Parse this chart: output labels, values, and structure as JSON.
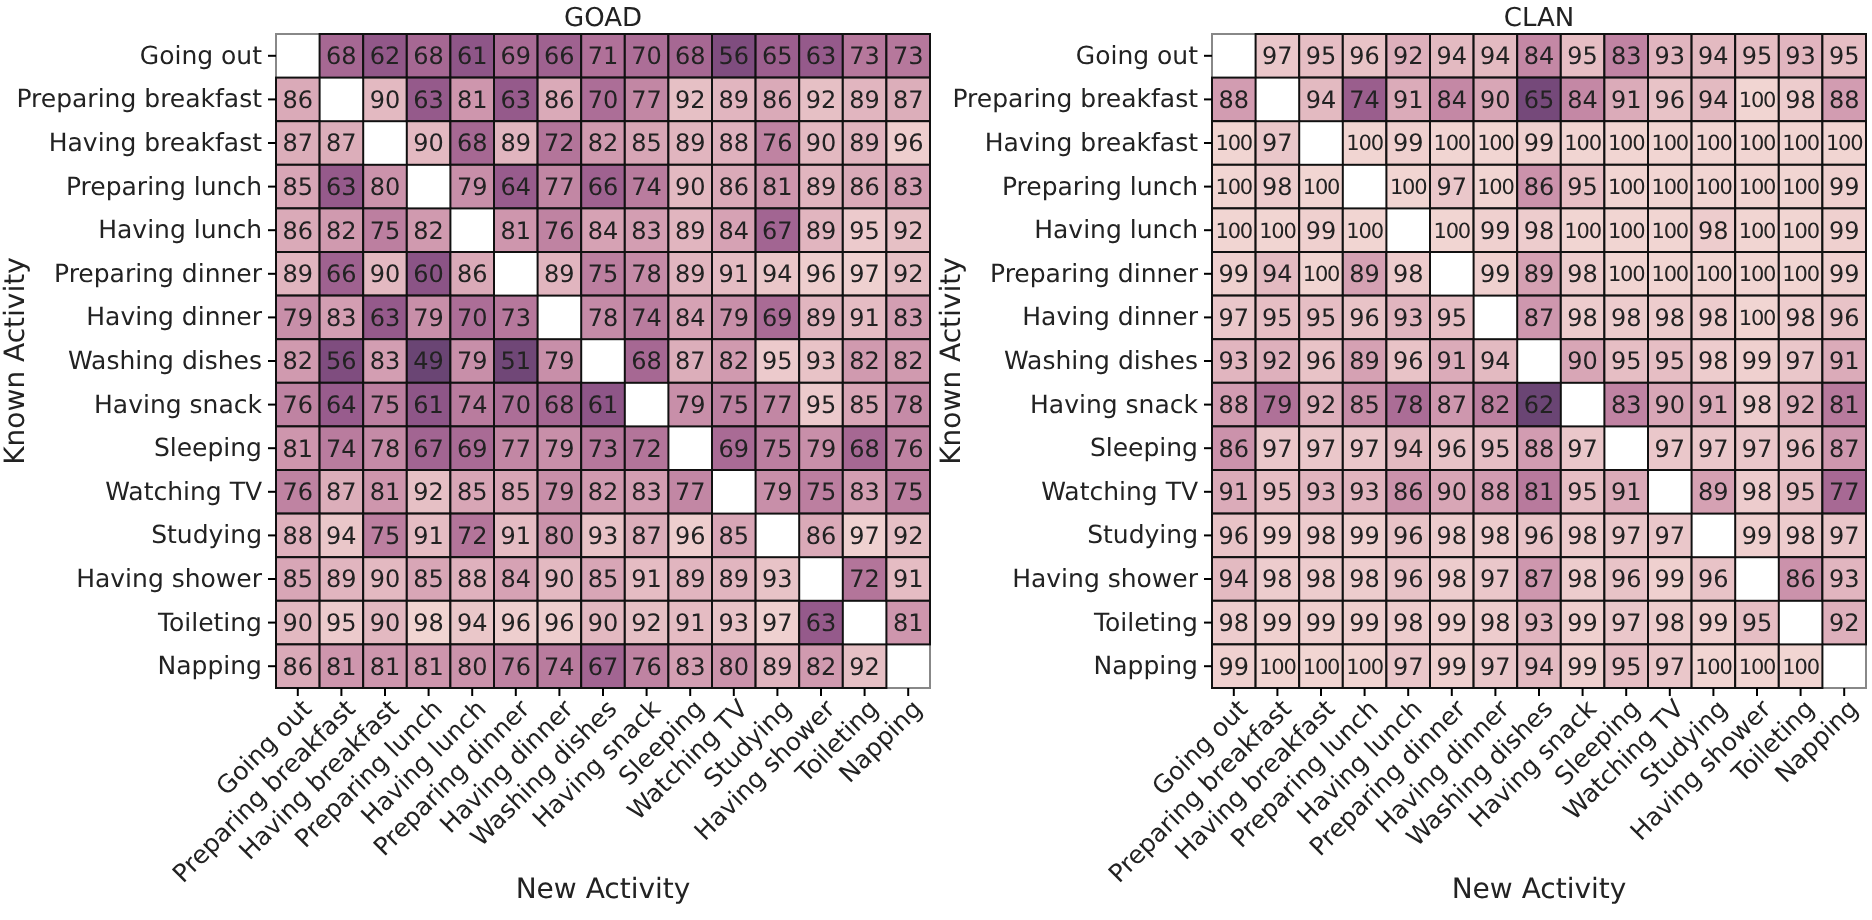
{
  "chart_data": [
    {
      "type": "heatmap",
      "title": "GOAD",
      "xlabel": "New Activity",
      "ylabel": "Known Activity",
      "categories": [
        "Going out",
        "Preparing breakfast",
        "Having breakfast",
        "Preparing lunch",
        "Having lunch",
        "Preparing dinner",
        "Having dinner",
        "Washing dishes",
        "Having snack",
        "Sleeping",
        "Watching TV",
        "Studying",
        "Having shower",
        "Toileting",
        "Napping"
      ],
      "y_categories": [
        "Going out",
        "Preparing breakfast",
        "Having breakfast",
        "Preparing lunch",
        "Having lunch",
        "Preparing dinner",
        "Having dinner",
        "Washing dishes",
        "Having snack",
        "Sleeping",
        "Watching TV",
        "Studying",
        "Having shower",
        "Toileting",
        "Napping"
      ],
      "data_labels": true,
      "cells": [
        [
          null,
          68,
          62,
          68,
          61,
          69,
          66,
          71,
          70,
          68,
          56,
          65,
          63,
          73,
          73
        ],
        [
          86,
          null,
          90,
          63,
          81,
          63,
          86,
          70,
          77,
          92,
          89,
          86,
          92,
          89,
          87
        ],
        [
          87,
          87,
          null,
          90,
          68,
          89,
          72,
          82,
          85,
          89,
          88,
          76,
          90,
          89,
          96
        ],
        [
          85,
          63,
          80,
          null,
          79,
          64,
          77,
          66,
          74,
          90,
          86,
          81,
          89,
          86,
          83
        ],
        [
          86,
          82,
          75,
          82,
          null,
          81,
          76,
          84,
          83,
          89,
          84,
          67,
          89,
          95,
          92
        ],
        [
          89,
          66,
          90,
          60,
          86,
          null,
          89,
          75,
          78,
          89,
          91,
          94,
          96,
          97,
          92
        ],
        [
          79,
          83,
          63,
          79,
          70,
          73,
          null,
          78,
          74,
          84,
          79,
          69,
          89,
          91,
          83
        ],
        [
          82,
          56,
          83,
          49,
          79,
          51,
          79,
          null,
          68,
          87,
          82,
          95,
          93,
          82,
          82
        ],
        [
          76,
          64,
          75,
          61,
          74,
          70,
          68,
          61,
          null,
          79,
          75,
          77,
          95,
          85,
          78
        ],
        [
          81,
          74,
          78,
          67,
          69,
          77,
          79,
          73,
          72,
          null,
          69,
          75,
          79,
          68,
          76
        ],
        [
          76,
          87,
          81,
          92,
          85,
          85,
          79,
          82,
          83,
          77,
          null,
          79,
          75,
          83,
          75
        ],
        [
          88,
          94,
          75,
          91,
          72,
          91,
          80,
          93,
          87,
          96,
          85,
          null,
          86,
          97,
          92
        ],
        [
          85,
          89,
          90,
          85,
          88,
          84,
          90,
          85,
          91,
          89,
          89,
          93,
          null,
          72,
          91
        ],
        [
          90,
          95,
          90,
          98,
          94,
          96,
          96,
          90,
          92,
          91,
          93,
          97,
          63,
          null,
          81
        ],
        [
          86,
          81,
          81,
          81,
          80,
          76,
          74,
          67,
          76,
          83,
          80,
          89,
          82,
          92,
          null
        ]
      ]
    },
    {
      "type": "heatmap",
      "title": "CLAN",
      "xlabel": "New Activity",
      "ylabel": "Known Activity",
      "categories": [
        "Going out",
        "Preparing breakfast",
        "Having breakfast",
        "Preparing lunch",
        "Having lunch",
        "Preparing dinner",
        "Having dinner",
        "Washing dishes",
        "Having snack",
        "Sleeping",
        "Watching TV",
        "Studying",
        "Having shower",
        "Toileting",
        "Napping"
      ],
      "y_categories": [
        "Going out",
        "Preparing breakfast",
        "Having breakfast",
        "Preparing lunch",
        "Having lunch",
        "Preparing dinner",
        "Having dinner",
        "Washing dishes",
        "Having snack",
        "Sleeping",
        "Watching TV",
        "Studying",
        "Having shower",
        "Toileting",
        "Napping"
      ],
      "data_labels": true,
      "cells": [
        [
          null,
          97,
          95,
          96,
          92,
          94,
          94,
          84,
          95,
          83,
          93,
          94,
          95,
          93,
          95
        ],
        [
          88,
          null,
          94,
          74,
          91,
          84,
          90,
          65,
          84,
          91,
          96,
          94,
          100,
          98,
          88
        ],
        [
          100,
          97,
          null,
          100,
          99,
          100,
          100,
          99,
          100,
          100,
          100,
          100,
          100,
          100,
          100
        ],
        [
          100,
          98,
          100,
          null,
          100,
          97,
          100,
          86,
          95,
          100,
          100,
          100,
          100,
          100,
          99
        ],
        [
          100,
          100,
          99,
          100,
          null,
          100,
          99,
          98,
          100,
          100,
          100,
          98,
          100,
          100,
          99
        ],
        [
          99,
          94,
          100,
          89,
          98,
          null,
          99,
          89,
          98,
          100,
          100,
          100,
          100,
          100,
          99
        ],
        [
          97,
          95,
          95,
          96,
          93,
          95,
          null,
          87,
          98,
          98,
          98,
          98,
          100,
          98,
          96
        ],
        [
          93,
          92,
          96,
          89,
          96,
          91,
          94,
          null,
          90,
          95,
          95,
          98,
          99,
          97,
          91
        ],
        [
          88,
          79,
          92,
          85,
          78,
          87,
          82,
          62,
          null,
          83,
          90,
          91,
          98,
          92,
          81
        ],
        [
          86,
          97,
          97,
          97,
          94,
          96,
          95,
          88,
          97,
          null,
          97,
          97,
          97,
          96,
          87
        ],
        [
          91,
          95,
          93,
          93,
          86,
          90,
          88,
          81,
          95,
          91,
          null,
          89,
          98,
          95,
          77
        ],
        [
          96,
          99,
          98,
          99,
          96,
          98,
          98,
          96,
          98,
          97,
          97,
          null,
          99,
          98,
          97
        ],
        [
          94,
          98,
          98,
          98,
          96,
          98,
          97,
          87,
          98,
          96,
          99,
          96,
          null,
          86,
          93
        ],
        [
          98,
          99,
          99,
          99,
          98,
          99,
          98,
          93,
          99,
          97,
          98,
          99,
          95,
          null,
          92
        ],
        [
          99,
          100,
          100,
          100,
          97,
          99,
          97,
          94,
          99,
          95,
          97,
          100,
          100,
          100,
          null
        ]
      ]
    }
  ]
}
